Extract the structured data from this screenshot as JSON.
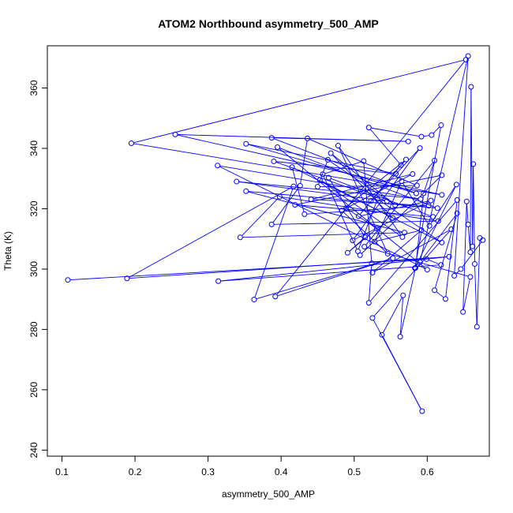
{
  "chart_data": {
    "type": "line",
    "title": "ATOM2 Northbound asymmetry_500_AMP",
    "xlabel": "asymmetry_500_AMP",
    "ylabel": "Theta (K)",
    "xlim": [
      0.08,
      0.685
    ],
    "ylim": [
      238,
      374
    ],
    "xticks": [
      0.1,
      0.2,
      0.3,
      0.4,
      0.5,
      0.6
    ],
    "yticks": [
      240,
      260,
      280,
      300,
      320,
      340,
      360
    ],
    "color": "#0000ff",
    "points": [
      [
        0.108,
        296.4
      ],
      [
        0.599,
        303.3
      ],
      [
        0.619,
        301.4
      ],
      [
        0.314,
        296.0
      ],
      [
        0.63,
        304.1
      ],
      [
        0.189,
        296.9
      ],
      [
        0.417,
        327.4
      ],
      [
        0.363,
        289.9
      ],
      [
        0.553,
        303.6
      ],
      [
        0.392,
        290.9
      ],
      [
        0.653,
        369.4
      ],
      [
        0.195,
        341.7
      ],
      [
        0.62,
        324.6
      ],
      [
        0.255,
        344.6
      ],
      [
        0.574,
        342.3
      ],
      [
        0.387,
        343.5
      ],
      [
        0.585,
        325.1
      ],
      [
        0.352,
        341.5
      ],
      [
        0.557,
        331.6
      ],
      [
        0.39,
        335.7
      ],
      [
        0.545,
        322.5
      ],
      [
        0.339,
        329.0
      ],
      [
        0.591,
        323.2
      ],
      [
        0.313,
        334.3
      ],
      [
        0.6,
        299.8
      ],
      [
        0.395,
        340.4
      ],
      [
        0.614,
        320.2
      ],
      [
        0.352,
        325.8
      ],
      [
        0.569,
        312.1
      ],
      [
        0.344,
        310.5
      ],
      [
        0.398,
        324.0
      ],
      [
        0.615,
        315.9
      ],
      [
        0.387,
        314.8
      ],
      [
        0.426,
        327.6
      ],
      [
        0.436,
        343.3
      ],
      [
        0.586,
        327.7
      ],
      [
        0.45,
        327.3
      ],
      [
        0.464,
        336.2
      ],
      [
        0.556,
        321.2
      ],
      [
        0.468,
        338.4
      ],
      [
        0.553,
        316.9
      ],
      [
        0.453,
        329.5
      ],
      [
        0.566,
        310.6
      ],
      [
        0.478,
        340.9
      ],
      [
        0.546,
        305.1
      ],
      [
        0.483,
        319.4
      ],
      [
        0.571,
        336.3
      ],
      [
        0.523,
        322.6
      ],
      [
        0.59,
        340.1
      ],
      [
        0.498,
        309.5
      ],
      [
        0.605,
        322.7
      ],
      [
        0.506,
        317.5
      ],
      [
        0.564,
        334.5
      ],
      [
        0.52,
        346.9
      ],
      [
        0.592,
        343.9
      ],
      [
        0.606,
        344.4
      ],
      [
        0.619,
        347.7
      ],
      [
        0.583,
        300.3
      ],
      [
        0.64,
        328.0
      ],
      [
        0.603,
        314.3
      ],
      [
        0.565,
        329.1
      ],
      [
        0.528,
        309.1
      ],
      [
        0.592,
        312.9
      ],
      [
        0.525,
        298.8
      ],
      [
        0.633,
        313.2
      ],
      [
        0.525,
        283.8
      ],
      [
        0.593,
        252.9
      ],
      [
        0.538,
        278.2
      ],
      [
        0.567,
        291.3
      ],
      [
        0.563,
        277.6
      ],
      [
        0.584,
        300.4
      ],
      [
        0.595,
        325.1
      ],
      [
        0.61,
        336.0
      ],
      [
        0.514,
        307.4
      ],
      [
        0.659,
        297.4
      ],
      [
        0.649,
        285.8
      ],
      [
        0.654,
        322.4
      ],
      [
        0.656,
        314.8
      ],
      [
        0.659,
        305.6
      ],
      [
        0.66,
        360.4
      ],
      [
        0.662,
        307.5
      ],
      [
        0.663,
        334.8
      ],
      [
        0.665,
        301.7
      ],
      [
        0.668,
        280.9
      ],
      [
        0.672,
        310.3
      ],
      [
        0.676,
        309.6
      ],
      [
        0.646,
        300.0
      ],
      [
        0.637,
        297.8
      ],
      [
        0.656,
        370.6
      ],
      [
        0.59,
        302.3
      ],
      [
        0.641,
        318.5
      ],
      [
        0.61,
        293.0
      ],
      [
        0.625,
        290.1
      ],
      [
        0.641,
        322.9
      ],
      [
        0.52,
        288.8
      ],
      [
        0.524,
        301.9
      ],
      [
        0.513,
        335.8
      ],
      [
        0.457,
        331.4
      ],
      [
        0.505,
        305.9
      ],
      [
        0.532,
        323.2
      ],
      [
        0.62,
        308.8
      ],
      [
        0.415,
        333.8
      ],
      [
        0.432,
        318.2
      ],
      [
        0.602,
        321.0
      ],
      [
        0.441,
        323.1
      ],
      [
        0.58,
        331.5
      ],
      [
        0.489,
        320.2
      ],
      [
        0.531,
        313.4
      ],
      [
        0.491,
        305.4
      ],
      [
        0.515,
        310.5
      ],
      [
        0.465,
        330.3
      ],
      [
        0.608,
        317.3
      ],
      [
        0.419,
        321.3
      ],
      [
        0.62,
        331.1
      ],
      [
        0.508,
        304.6
      ]
    ]
  }
}
